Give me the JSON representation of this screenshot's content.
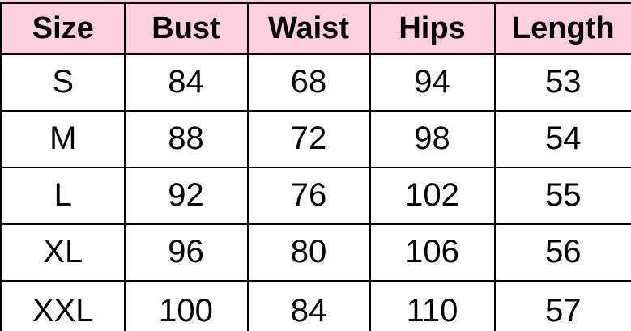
{
  "chart_data": {
    "type": "table",
    "columns": [
      "Size",
      "Bust",
      "Waist",
      "Hips",
      "Length"
    ],
    "rows": [
      [
        "S",
        "84",
        "68",
        "94",
        "53"
      ],
      [
        "M",
        "88",
        "72",
        "98",
        "54"
      ],
      [
        "L",
        "92",
        "76",
        "102",
        "55"
      ],
      [
        "XL",
        "96",
        "80",
        "106",
        "56"
      ],
      [
        "XXL",
        "100",
        "84",
        "110",
        "57"
      ]
    ],
    "layout_hints": {
      "header_style": "bold on pink background",
      "grid": "on",
      "bottom_edge": "cropped"
    }
  },
  "style": {
    "header_bg": "#ffd0e0",
    "border_color": "#000000",
    "text_color": "#000000",
    "background": "#ffffff"
  }
}
